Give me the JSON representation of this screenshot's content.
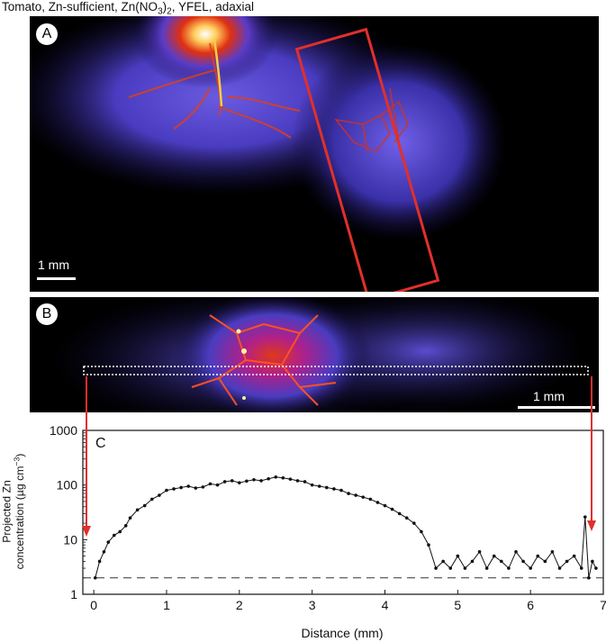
{
  "caption": {
    "pre": "Tomato, Zn-sufficient, Zn(NO",
    "sub": "3",
    "post": ")",
    "sub2": "2",
    "tail": ", YFEL, adaxial"
  },
  "panels": {
    "a": {
      "letter": "A",
      "scale_label": "1 mm"
    },
    "b": {
      "letter": "B",
      "scale_label": "1 mm"
    },
    "c": {
      "letter": "C"
    }
  },
  "colors": {
    "roi_box": "#e0302a",
    "arrow": "#e0302a",
    "data": "#111111"
  },
  "chart_data": {
    "type": "line",
    "xlabel": "Distance (mm)",
    "ylabel_line1": "Projected Zn",
    "ylabel_line2": "concentration (µg cm",
    "ylabel_sup": "−3",
    "ylabel_end": ")",
    "yscale": "log",
    "xlim": [
      -0.15,
      7.0
    ],
    "ylim": [
      1,
      1000
    ],
    "xticks": [
      0,
      1,
      2,
      3,
      4,
      5,
      6,
      7
    ],
    "yticks": [
      1,
      10,
      100,
      1000
    ],
    "ytick_labels": [
      "1",
      "10",
      "100",
      "1000"
    ],
    "reference_line": {
      "style": "dashed",
      "y": 2
    },
    "series": [
      {
        "marker": "dot",
        "x": [
          0.02,
          0.08,
          0.14,
          0.2,
          0.28,
          0.36,
          0.44,
          0.5,
          0.6,
          0.7,
          0.8,
          0.9,
          1.0,
          1.1,
          1.2,
          1.3,
          1.4,
          1.5,
          1.6,
          1.7,
          1.8,
          1.9,
          2.0,
          2.1,
          2.2,
          2.3,
          2.4,
          2.5,
          2.6,
          2.7,
          2.8,
          2.9,
          3.0,
          3.1,
          3.2,
          3.3,
          3.4,
          3.5,
          3.6,
          3.7,
          3.8,
          3.9,
          4.0,
          4.1,
          4.2,
          4.3,
          4.4,
          4.5,
          4.6,
          4.7,
          4.8,
          4.9,
          5.0,
          5.1,
          5.2,
          5.3,
          5.4,
          5.5,
          5.6,
          5.7,
          5.8,
          5.9,
          6.0,
          6.1,
          6.2,
          6.3,
          6.4,
          6.5,
          6.6,
          6.7,
          6.75,
          6.8,
          6.85,
          6.9
        ],
        "y": [
          2,
          4,
          6,
          9,
          12,
          14,
          18,
          25,
          35,
          42,
          55,
          65,
          80,
          85,
          90,
          95,
          88,
          92,
          105,
          100,
          115,
          120,
          110,
          118,
          125,
          120,
          130,
          140,
          135,
          128,
          120,
          115,
          100,
          95,
          90,
          85,
          80,
          70,
          65,
          60,
          55,
          48,
          42,
          36,
          30,
          25,
          20,
          14,
          8,
          3,
          4,
          3,
          5,
          3,
          4,
          6,
          3,
          5,
          4,
          3,
          6,
          4,
          3,
          5,
          4,
          6,
          3,
          4,
          5,
          3,
          26,
          2,
          4,
          3
        ]
      }
    ]
  }
}
